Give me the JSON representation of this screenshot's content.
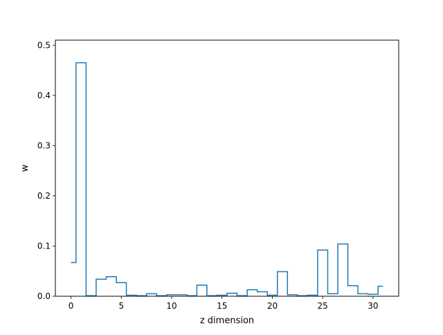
{
  "chart_data": {
    "type": "line",
    "drawstyle": "steps-mid",
    "title": "",
    "xlabel": "z dimension",
    "ylabel": "w",
    "xlim": [
      -1.55,
      32.55
    ],
    "ylim": [
      0,
      0.51
    ],
    "xticks": [
      0,
      5,
      10,
      15,
      20,
      25,
      30
    ],
    "yticks": [
      0.0,
      0.1,
      0.2,
      0.3,
      0.4,
      0.5
    ],
    "ytick_labels": [
      "0.0",
      "0.1",
      "0.2",
      "0.3",
      "0.4",
      "0.5"
    ],
    "grid": false,
    "color": "#1f77b4",
    "x": [
      0,
      1,
      2,
      3,
      4,
      5,
      6,
      7,
      8,
      9,
      10,
      11,
      12,
      13,
      14,
      15,
      16,
      17,
      18,
      19,
      20,
      21,
      22,
      23,
      24,
      25,
      26,
      27,
      28,
      29,
      30,
      31
    ],
    "values": [
      0.067,
      0.465,
      0.001,
      0.034,
      0.039,
      0.027,
      0.002,
      0.001,
      0.005,
      0.001,
      0.003,
      0.003,
      0.001,
      0.022,
      0.001,
      0.002,
      0.006,
      0.001,
      0.013,
      0.009,
      0.002,
      0.049,
      0.003,
      0.001,
      0.002,
      0.092,
      0.005,
      0.104,
      0.021,
      0.005,
      0.004,
      0.02
    ]
  }
}
